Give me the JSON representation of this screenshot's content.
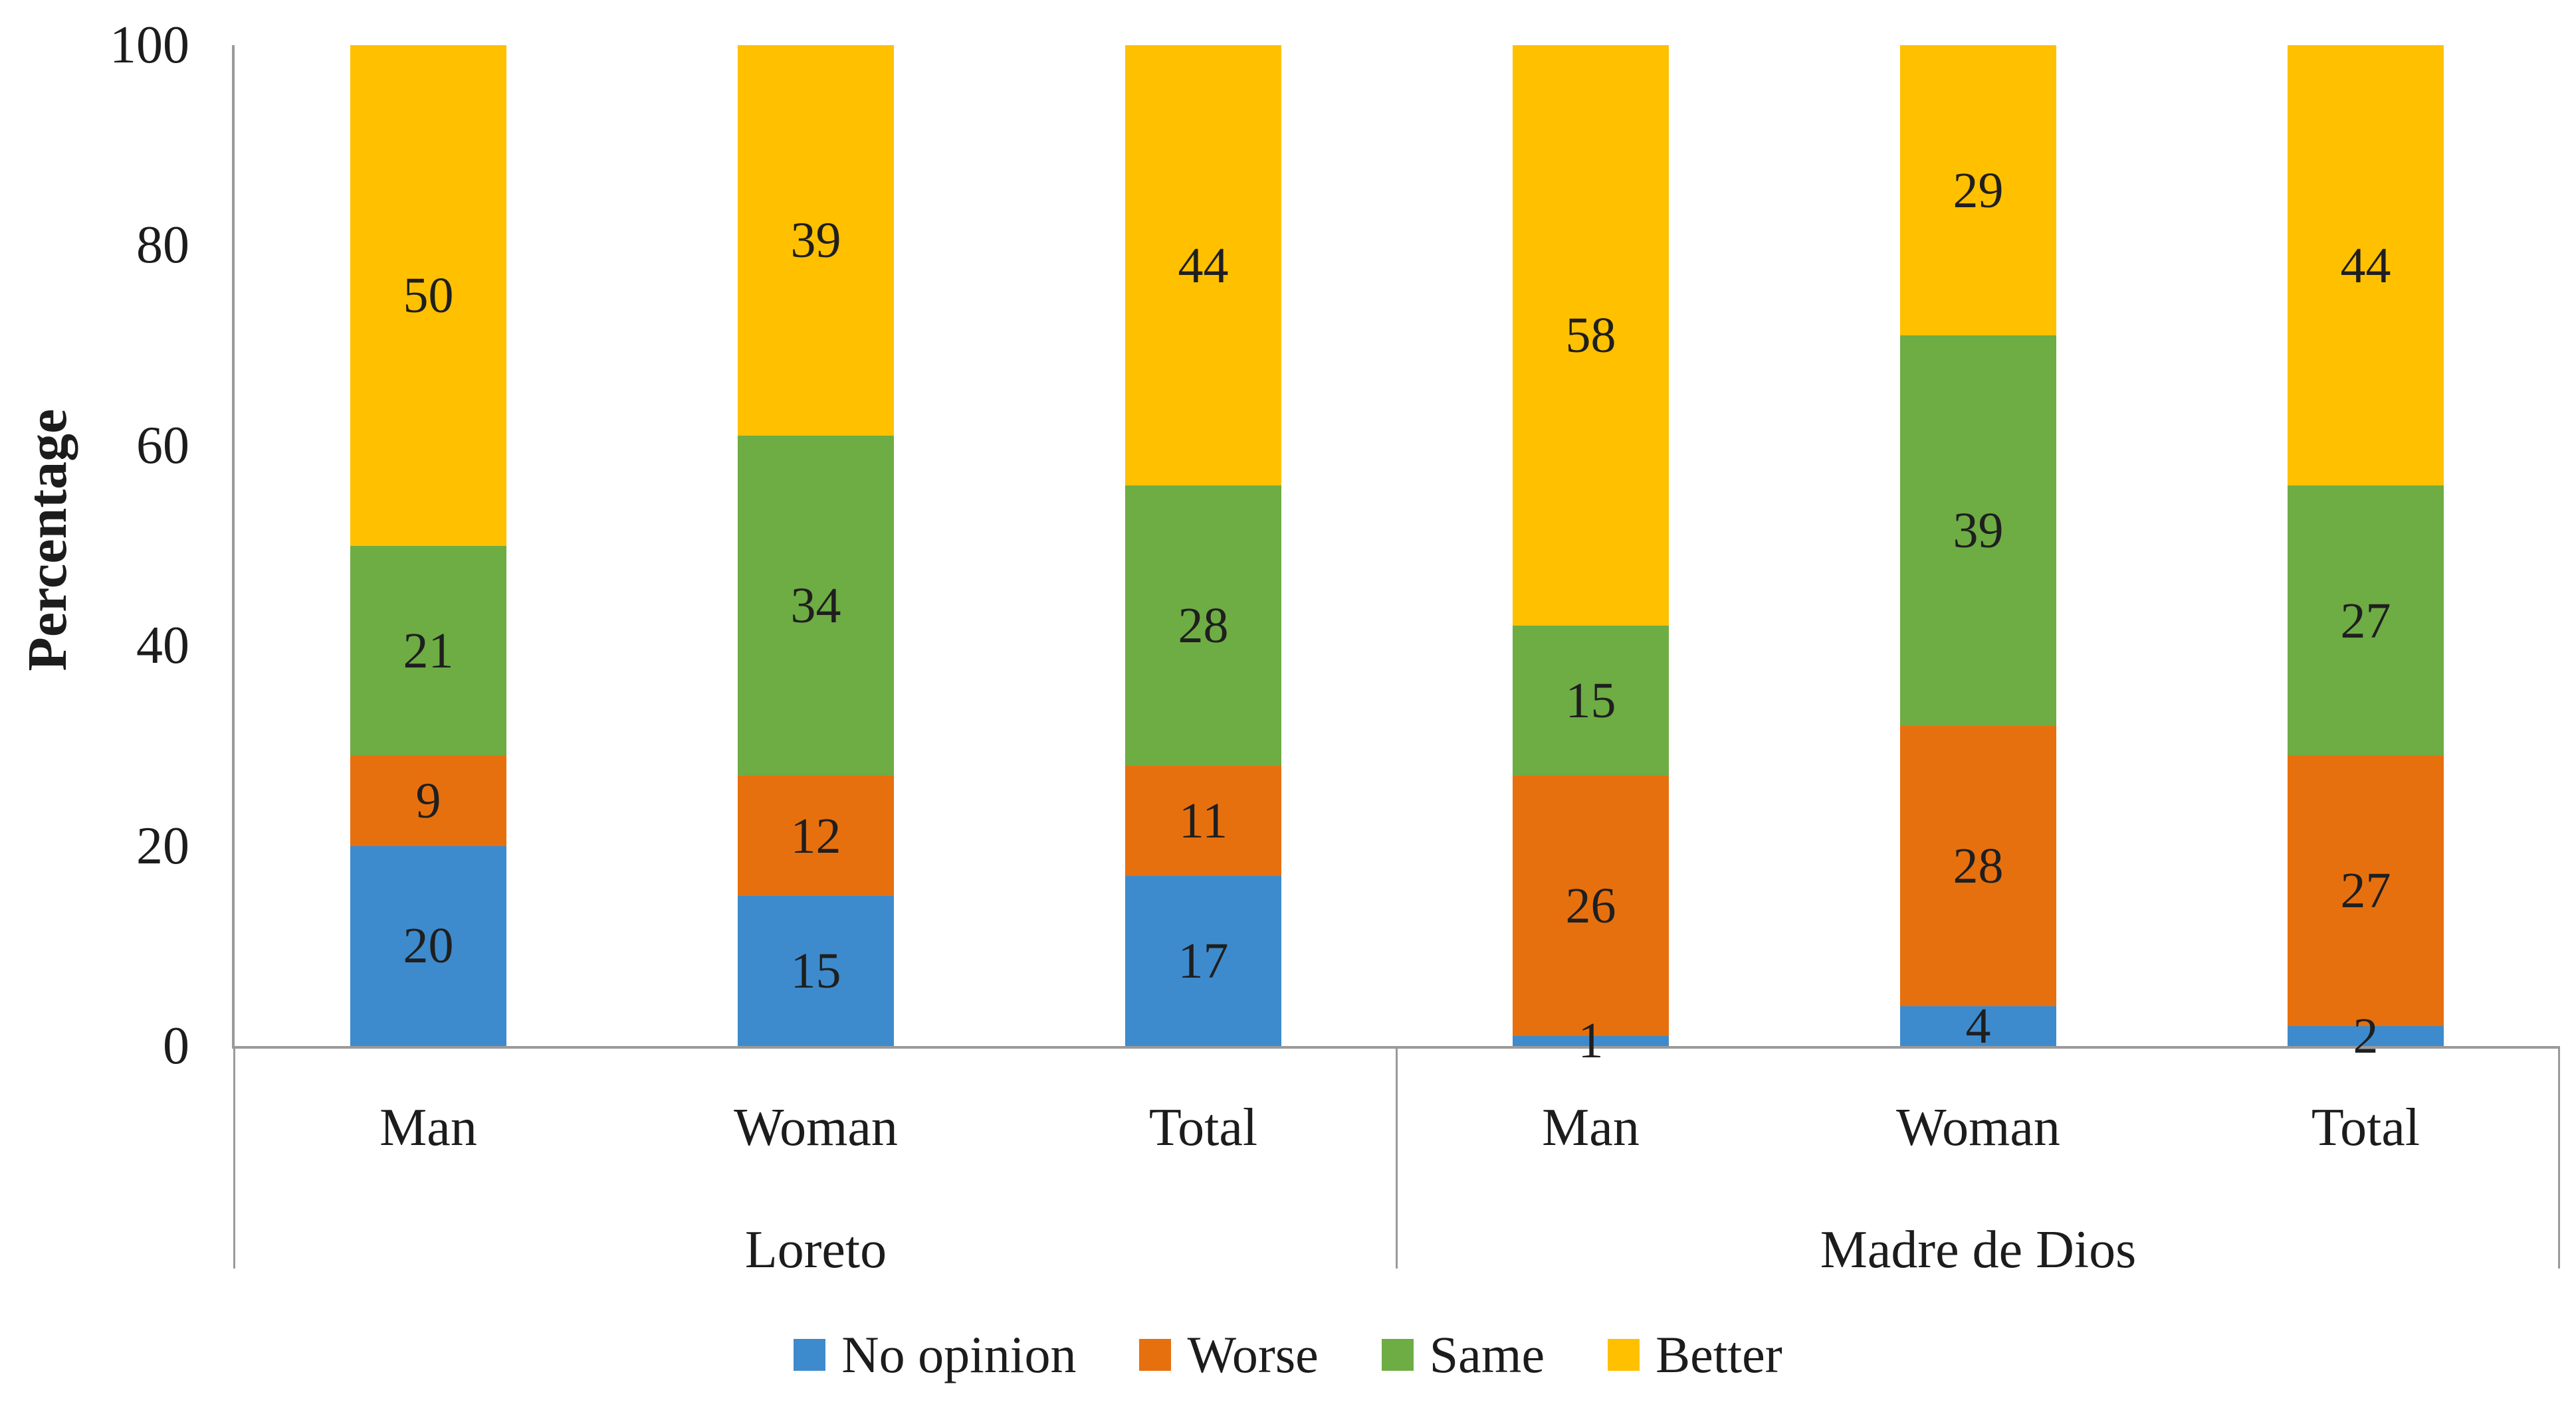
{
  "chart_data": {
    "type": "bar",
    "subtype": "stacked-column",
    "title": "",
    "ylabel": "Percentage",
    "ylim": [
      0,
      100
    ],
    "yticks": [
      "0",
      "20",
      "40",
      "60",
      "80",
      "100"
    ],
    "ytick_values": [
      0,
      20,
      40,
      60,
      80,
      100
    ],
    "grid": "off",
    "legend_position": "bottom",
    "groups": [
      {
        "label": "Loreto",
        "categories": [
          "Man",
          "Woman",
          "Total"
        ]
      },
      {
        "label": "Madre de Dios",
        "categories": [
          "Man",
          "Woman",
          "Total"
        ]
      }
    ],
    "categories": [
      "Man",
      "Woman",
      "Total",
      "Man",
      "Woman",
      "Total"
    ],
    "series": [
      {
        "name": "No opinion",
        "color": "#3D8BCD",
        "values": [
          20,
          15,
          17,
          1,
          4,
          2
        ]
      },
      {
        "name": "Worse",
        "color": "#E7700E",
        "values": [
          9,
          12,
          11,
          26,
          28,
          27
        ]
      },
      {
        "name": "Same",
        "color": "#6EAC44",
        "values": [
          21,
          34,
          28,
          15,
          39,
          27
        ]
      },
      {
        "name": "Better",
        "color": "#FFC000",
        "values": [
          50,
          39,
          44,
          58,
          29,
          44
        ]
      }
    ],
    "bar_value_labels_shown": true,
    "axis_color": "#9a9a9a",
    "text_color": "#1c1c1c"
  }
}
